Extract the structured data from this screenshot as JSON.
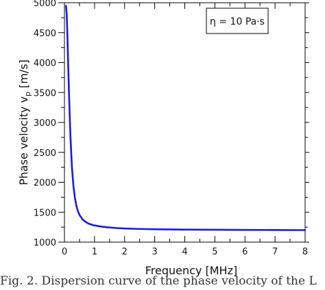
{
  "chart_data": {
    "type": "line",
    "xlabel": "Frequency  [MHz]",
    "ylabel": "Phase velocity v",
    "ylabel_sub": "p",
    "ylabel_unit": " [m/s]",
    "xlim": [
      0,
      8
    ],
    "ylim": [
      1000,
      5000
    ],
    "x_ticks": [
      "0",
      "1",
      "2",
      "3",
      "4",
      "5",
      "6",
      "7",
      "8"
    ],
    "y_ticks": [
      "1000",
      "1500",
      "2000",
      "2500",
      "3000",
      "3500",
      "4000",
      "4500",
      "5000"
    ],
    "grid": false,
    "legend": {
      "text": "η = 10 Pa·s",
      "placement": "top-right"
    },
    "line_color": "#1a1adf",
    "series": [
      {
        "x": [
          0.05,
          0.075,
          0.1,
          0.125,
          0.15,
          0.175,
          0.2,
          0.25,
          0.3,
          0.35,
          0.4,
          0.45,
          0.5,
          0.6,
          0.7,
          0.8,
          0.9,
          1.0,
          1.2,
          1.4,
          1.6,
          1.8,
          2.0,
          2.5,
          3.0,
          3.5,
          4.0,
          5.0,
          6.0,
          7.0,
          8.0
        ],
        "y": [
          4950,
          4810,
          4420,
          3950,
          3520,
          3120,
          2760,
          2240,
          1930,
          1730,
          1600,
          1515,
          1455,
          1380,
          1338,
          1310,
          1292,
          1279,
          1261,
          1249,
          1240,
          1233,
          1228,
          1220,
          1215,
          1212,
          1209,
          1206,
          1204,
          1202,
          1200
        ]
      }
    ]
  },
  "caption": "Fig. 2. Dispersion curve of the phase velocity of the L"
}
